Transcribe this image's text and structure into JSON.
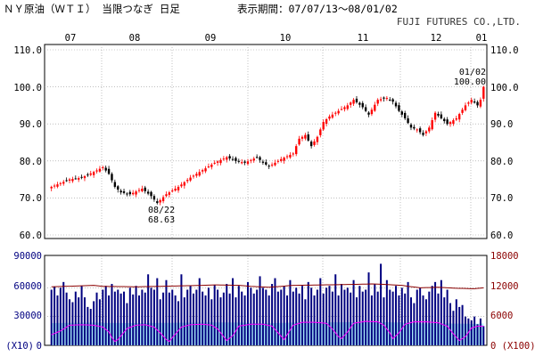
{
  "header": {
    "title": "ＮＹ原油（ＷＴＩ） 当限つなぎ 日足",
    "period": "表示期間：07/07/13～08/01/02",
    "source": "FUJI FUTURES CO.,LTD."
  },
  "colors": {
    "up": "#ff0000",
    "down": "#000000",
    "volume_bar": "#000080",
    "oi_area": "#a8e8f8",
    "oi_line": "#ff00ff",
    "top_line": "#8b0000",
    "grid": "#999999"
  },
  "chart_data": [
    {
      "type": "candlestick",
      "months": [
        "07",
        "08",
        "09",
        "10",
        "11",
        "12",
        "01"
      ],
      "y_ticks": [
        "110.0",
        "100.0",
        "90.0",
        "80.0",
        "70.0",
        "60.0"
      ],
      "ylim": [
        60,
        110
      ],
      "grid": true,
      "annotations": [
        {
          "date": "08/22",
          "value": "68.63"
        },
        {
          "date": "01/02",
          "value": "100.00"
        }
      ],
      "close_points": [
        [
          0,
          73.0
        ],
        [
          6,
          75.0
        ],
        [
          10,
          75.5
        ],
        [
          14,
          77.0
        ],
        [
          17,
          78.3
        ],
        [
          19,
          76.5
        ],
        [
          21,
          73.0
        ],
        [
          23,
          71.5
        ],
        [
          26,
          71.0
        ],
        [
          30,
          72.5
        ],
        [
          33,
          70.5
        ],
        [
          35,
          68.63
        ],
        [
          38,
          71.0
        ],
        [
          42,
          73.0
        ],
        [
          46,
          75.5
        ],
        [
          50,
          77.5
        ],
        [
          54,
          79.5
        ],
        [
          58,
          81.0
        ],
        [
          61,
          80.0
        ],
        [
          64,
          79.5
        ],
        [
          68,
          81.0
        ],
        [
          70,
          79.5
        ],
        [
          72,
          78.5
        ],
        [
          76,
          80.5
        ],
        [
          80,
          82.0
        ],
        [
          82,
          86.0
        ],
        [
          84,
          87.0
        ],
        [
          86,
          84.0
        ],
        [
          88,
          86.5
        ],
        [
          90,
          90.5
        ],
        [
          92,
          92.0
        ],
        [
          95,
          93.5
        ],
        [
          98,
          95.0
        ],
        [
          100,
          96.5
        ],
        [
          103,
          94.5
        ],
        [
          105,
          92.5
        ],
        [
          108,
          96.5
        ],
        [
          111,
          97.0
        ],
        [
          113,
          96.0
        ],
        [
          115,
          93.5
        ],
        [
          117,
          91.5
        ],
        [
          119,
          89.0
        ],
        [
          121,
          88.5
        ],
        [
          123,
          87.0
        ],
        [
          125,
          89.0
        ],
        [
          127,
          93.0
        ],
        [
          129,
          91.5
        ],
        [
          131,
          90.0
        ],
        [
          134,
          91.5
        ],
        [
          137,
          95.0
        ],
        [
          139,
          96.5
        ],
        [
          141,
          95.0
        ],
        [
          142,
          96.5
        ],
        [
          143,
          100.0
        ]
      ]
    },
    {
      "type": "bar",
      "left_ticks": [
        "90000",
        "60000",
        "30000",
        "0"
      ],
      "right_ticks": [
        "18000",
        "12000",
        "6000",
        "0"
      ],
      "left_unit": "(X10)",
      "right_unit": "0 (X100)",
      "left_lim": [
        0,
        90000
      ],
      "right_lim": [
        0,
        18000
      ],
      "series": [
        {
          "values": [
            58000,
            61000,
            52000,
            60000,
            66000,
            55000,
            48000,
            45000,
            56000,
            50000,
            62000,
            50000,
            40000,
            38000,
            46000,
            55000,
            48000,
            58000,
            62000,
            52000,
            64000,
            56000,
            58000,
            54000,
            56000,
            44000,
            60000,
            53000,
            62000,
            52000,
            58000,
            55000,
            74000,
            60000,
            58000,
            70000,
            48000,
            55000,
            68000,
            55000,
            58000,
            52000,
            46000,
            74000,
            50000,
            58000,
            62000,
            54000,
            58000,
            70000,
            56000,
            52000,
            60000,
            48000,
            63000,
            58000,
            50000,
            55000,
            64000,
            54000,
            70000,
            50000,
            62000,
            56000,
            52000,
            66000,
            60000,
            54000,
            58000,
            72000,
            60000,
            58000,
            52000,
            64000,
            70000,
            56000,
            58000,
            62000,
            52000,
            68000,
            56000,
            60000,
            54000,
            62000,
            48000,
            66000,
            60000,
            52000,
            58000,
            70000,
            54000,
            60000,
            62000,
            56000,
            74000,
            52000,
            64000,
            58000,
            60000,
            55000,
            68000,
            50000,
            62000,
            56000,
            58000,
            76000,
            52000,
            64000,
            56000,
            85000,
            50000,
            68000,
            58000,
            56000,
            62000,
            52000,
            60000,
            54000,
            66000,
            50000,
            44000,
            58000,
            60000,
            52000,
            48000,
            56000,
            62000,
            66000,
            54000,
            68000,
            50000,
            58000,
            44000,
            36000,
            48000,
            40000,
            42000,
            30000,
            28000,
            26000,
            30000,
            22000,
            28000,
            20000
          ]
        },
        {
          "close_points": [
            [
              0,
              12200
            ],
            [
              14,
              12500
            ],
            [
              17,
              12300
            ],
            [
              28,
              12200
            ],
            [
              36,
              12300
            ],
            [
              50,
              12500
            ],
            [
              54,
              12600
            ],
            [
              62,
              12500
            ],
            [
              66,
              12300
            ],
            [
              72,
              12100
            ],
            [
              80,
              12500
            ],
            [
              90,
              12600
            ],
            [
              100,
              12700
            ],
            [
              106,
              12800
            ],
            [
              110,
              12700
            ],
            [
              116,
              12500
            ],
            [
              118,
              12300
            ],
            [
              122,
              12000
            ],
            [
              128,
              12100
            ],
            [
              134,
              11900
            ],
            [
              140,
              11800
            ],
            [
              143,
              12000
            ]
          ]
        },
        {
          "close_points": [
            [
              0,
              2200
            ],
            [
              3,
              3000
            ],
            [
              6,
              4200
            ],
            [
              10,
              4300
            ],
            [
              14,
              4200
            ],
            [
              17,
              3800
            ],
            [
              19,
              2800
            ],
            [
              20,
              1600
            ],
            [
              21,
              800
            ],
            [
              22,
              1200
            ],
            [
              25,
              3500
            ],
            [
              28,
              4200
            ],
            [
              31,
              4300
            ],
            [
              34,
              3800
            ],
            [
              36,
              2600
            ],
            [
              38,
              1200
            ],
            [
              39,
              800
            ],
            [
              40,
              1600
            ],
            [
              43,
              3800
            ],
            [
              46,
              4300
            ],
            [
              50,
              4400
            ],
            [
              53,
              4200
            ],
            [
              55,
              3400
            ],
            [
              57,
              1800
            ],
            [
              58,
              1000
            ],
            [
              60,
              2000
            ],
            [
              62,
              4000
            ],
            [
              66,
              4400
            ],
            [
              70,
              4400
            ],
            [
              73,
              4000
            ],
            [
              75,
              2600
            ],
            [
              77,
              1200
            ],
            [
              78,
              2200
            ],
            [
              80,
              4200
            ],
            [
              83,
              4800
            ],
            [
              87,
              4800
            ],
            [
              91,
              4600
            ],
            [
              93,
              3400
            ],
            [
              95,
              1800
            ],
            [
              96,
              1400
            ],
            [
              98,
              2800
            ],
            [
              100,
              4600
            ],
            [
              104,
              5000
            ],
            [
              108,
              4900
            ],
            [
              110,
              4200
            ],
            [
              112,
              2600
            ],
            [
              113,
              1400
            ],
            [
              115,
              2600
            ],
            [
              117,
              4400
            ],
            [
              120,
              4900
            ],
            [
              124,
              4900
            ],
            [
              128,
              4700
            ],
            [
              131,
              4000
            ],
            [
              133,
              2400
            ],
            [
              135,
              1000
            ],
            [
              137,
              1800
            ],
            [
              139,
              3600
            ],
            [
              141,
              4000
            ],
            [
              143,
              4000
            ]
          ]
        }
      ]
    }
  ]
}
